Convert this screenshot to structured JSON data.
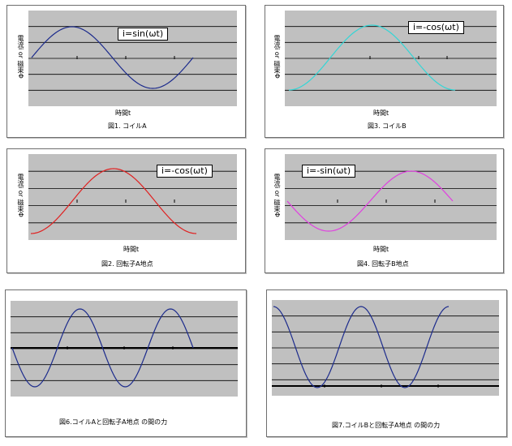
{
  "chart_data": [
    {
      "id": "fig1",
      "type": "line",
      "curve": "sin",
      "color": "#1c2b8c",
      "formula": "i=sin(ωt)",
      "ylabel": "電流i or 磁束Φ",
      "xlabel": "時間t",
      "caption": "図1. コイルA",
      "x": [
        0,
        0.0625,
        0.125,
        0.1875,
        0.25,
        0.3125,
        0.375,
        0.4375,
        0.5,
        0.5625,
        0.625,
        0.6875,
        0.75,
        0.8125,
        0.875,
        0.9375,
        1
      ],
      "y": [
        0,
        0.38,
        0.71,
        0.92,
        1,
        0.92,
        0.71,
        0.38,
        0,
        -0.38,
        -0.71,
        -0.92,
        -1,
        -0.92,
        -0.71,
        -0.38,
        0
      ]
    },
    {
      "id": "fig3",
      "type": "line",
      "curve": "negcos",
      "color": "#33d6d6",
      "formula": "i=-cos(ωt)",
      "ylabel": "電流i or 磁束Φ",
      "xlabel": "時間t",
      "caption": "図3. コイルB",
      "x": [
        0,
        0.0625,
        0.125,
        0.1875,
        0.25,
        0.3125,
        0.375,
        0.4375,
        0.5,
        0.5625,
        0.625,
        0.6875,
        0.75,
        0.8125,
        0.875,
        0.9375,
        1
      ],
      "y": [
        -1,
        -0.92,
        -0.71,
        -0.38,
        0,
        0.38,
        0.71,
        0.92,
        1,
        0.92,
        0.71,
        0.38,
        0,
        -0.38,
        -0.71,
        -0.92,
        -1
      ]
    },
    {
      "id": "fig2",
      "type": "line",
      "curve": "negcos",
      "color": "#e02020",
      "formula": "i=-cos(ωt)",
      "ylabel": "電流i or 磁束Φ",
      "xlabel": "時間t",
      "caption": "図2. 回転子A地点",
      "x": [
        0,
        0.0625,
        0.125,
        0.1875,
        0.25,
        0.3125,
        0.375,
        0.4375,
        0.5,
        0.5625,
        0.625,
        0.6875,
        0.75,
        0.8125,
        0.875,
        0.9375,
        1
      ],
      "y": [
        -1,
        -0.92,
        -0.71,
        -0.38,
        0,
        0.38,
        0.71,
        0.92,
        1,
        0.92,
        0.71,
        0.38,
        0,
        -0.38,
        -0.71,
        -0.92,
        -1
      ]
    },
    {
      "id": "fig4",
      "type": "line",
      "curve": "negsin",
      "color": "#e040e0",
      "formula": "i=-sin(ωt)",
      "ylabel": "電流i or 磁束Φ",
      "xlabel": "時間t",
      "caption": "図4. 回転子B地点",
      "x": [
        0,
        0.0625,
        0.125,
        0.1875,
        0.25,
        0.3125,
        0.375,
        0.4375,
        0.5,
        0.5625,
        0.625,
        0.6875,
        0.75,
        0.8125,
        0.875,
        0.9375,
        1
      ],
      "y": [
        0,
        -0.38,
        -0.71,
        -0.92,
        -1,
        -0.92,
        -0.71,
        -0.38,
        0,
        0.38,
        0.71,
        0.92,
        1,
        0.92,
        0.71,
        0.38,
        0
      ]
    },
    {
      "id": "fig6",
      "type": "line",
      "curve": "force",
      "color": "#1c2b8c",
      "caption": "図6.コイルAと回転子A地点 の間の力",
      "x": [
        0,
        0.0625,
        0.125,
        0.1875,
        0.25,
        0.3125,
        0.375,
        0.4375,
        0.5,
        0.5625,
        0.625,
        0.6875,
        0.75,
        0.8125,
        0.875,
        0.9375,
        1
      ],
      "y": [
        0,
        -0.71,
        -1,
        -0.71,
        0,
        0.71,
        1,
        0.71,
        0,
        -0.71,
        -1,
        -0.71,
        0,
        0.71,
        1,
        0.71,
        0
      ]
    },
    {
      "id": "fig7",
      "type": "line",
      "curve": "force2",
      "color": "#1c2b8c",
      "caption": "図7.コイルBと回転子A地点 の間の力",
      "x": [
        0,
        0.0625,
        0.125,
        0.1875,
        0.25,
        0.3125,
        0.375,
        0.4375,
        0.5,
        0.5625,
        0.625,
        0.6875,
        0.75,
        0.8125,
        0.875,
        0.9375,
        1
      ],
      "y": [
        1,
        0.71,
        0,
        -0.71,
        -1,
        -0.71,
        0,
        0.71,
        1,
        0.71,
        0,
        -0.71,
        -1,
        -0.71,
        0,
        0.71,
        1
      ]
    }
  ]
}
